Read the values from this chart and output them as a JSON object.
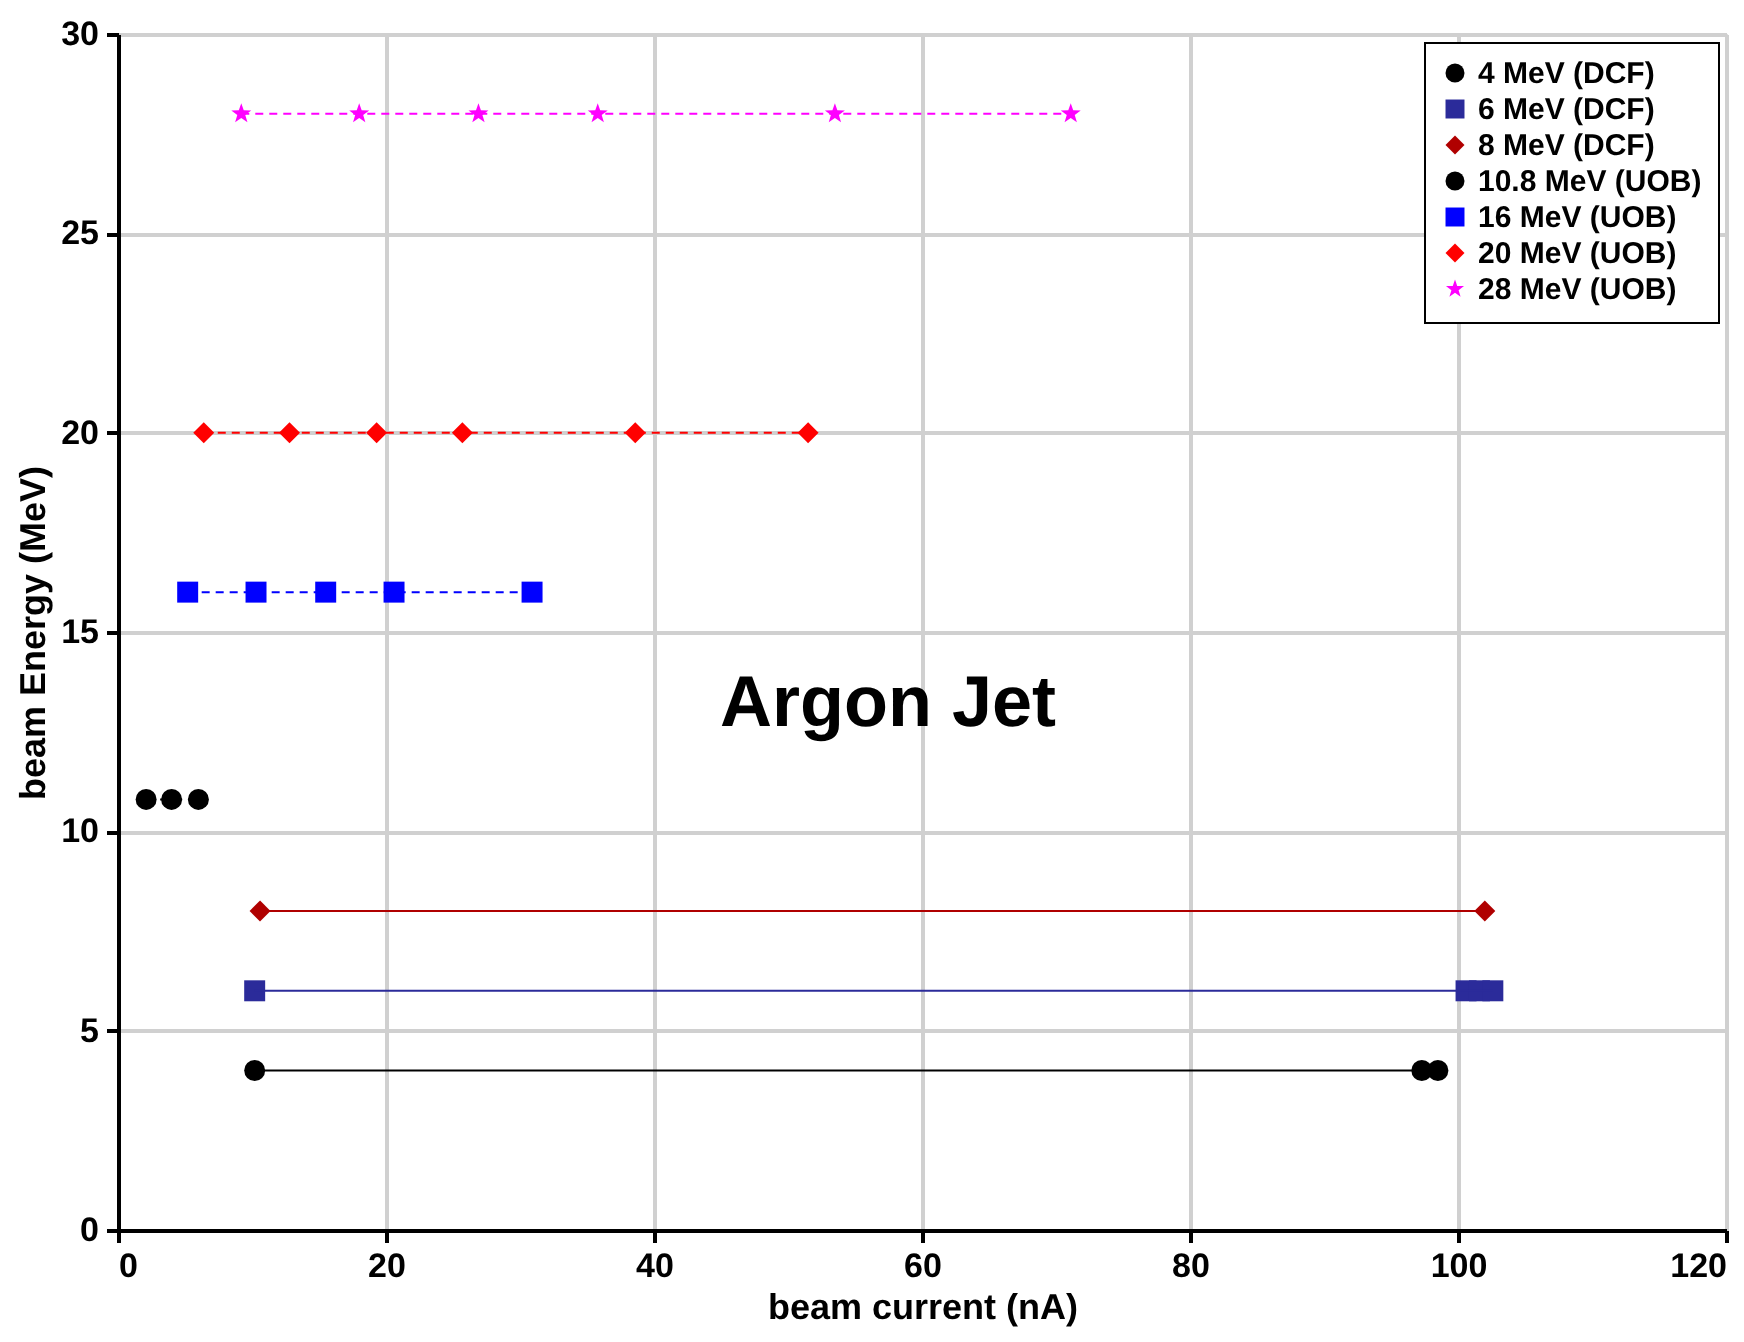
{
  "chart_data": {
    "type": "line",
    "xlabel": "beam current (nA)",
    "ylabel": "beam Energy (MeV)",
    "xlim": [
      0,
      120
    ],
    "xticks": [
      0,
      20,
      40,
      60,
      80,
      100,
      120
    ],
    "ylim": [
      0,
      30
    ],
    "yticks": [
      0,
      5,
      10,
      15,
      20,
      25,
      30
    ],
    "grid": true,
    "legend": "top right",
    "annotations": [
      "Argon Jet"
    ],
    "series": [
      {
        "name": "4 MeV (DCF)",
        "color": "#000000",
        "marker": "circle",
        "line_style": "solid",
        "x": [
          10.2,
          97.3,
          98.5
        ],
        "values": [
          4,
          4,
          4
        ]
      },
      {
        "name": "6 MeV (DCF)",
        "color": "#2b2b9a",
        "marker": "square",
        "line_style": "solid",
        "x": [
          10.2,
          100.6,
          101.6,
          102.6
        ],
        "values": [
          6,
          6,
          6,
          6
        ]
      },
      {
        "name": "8 MeV (DCF)",
        "color": "#b00000",
        "marker": "diamond",
        "line_style": "solid",
        "x": [
          10.6,
          102.0
        ],
        "values": [
          8,
          8
        ]
      },
      {
        "name": "10.8 MeV (UOB)",
        "color": "#000000",
        "marker": "circle",
        "line_style": "dashed",
        "x": [
          2.1,
          4.0,
          6.0
        ],
        "values": [
          10.8,
          10.8,
          10.8
        ]
      },
      {
        "name": "16 MeV (UOB)",
        "color": "#0000ff",
        "marker": "square",
        "line_style": "dashed",
        "x": [
          5.2,
          10.3,
          15.5,
          20.6,
          30.9
        ],
        "values": [
          16,
          16,
          16,
          16,
          16
        ]
      },
      {
        "name": "20 MeV (UOB)",
        "color": "#ff0000",
        "marker": "diamond",
        "line_style": "dashed",
        "x": [
          6.4,
          12.8,
          19.3,
          25.7,
          38.6,
          51.5
        ],
        "values": [
          20,
          20,
          20,
          20,
          20,
          20
        ]
      },
      {
        "name": "28 MeV (UOB)",
        "color": "#ff00ff",
        "marker": "star",
        "line_style": "dashed",
        "x": [
          9.2,
          18.0,
          26.9,
          35.8,
          53.5,
          71.1
        ],
        "values": [
          28,
          28,
          28,
          28,
          28,
          28
        ]
      }
    ]
  }
}
